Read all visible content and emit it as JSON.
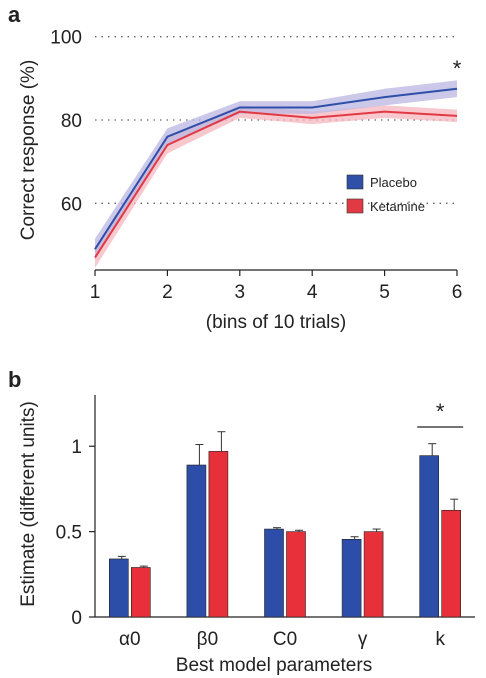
{
  "chart_data": [
    {
      "panel_label": "a",
      "type": "line",
      "x": [
        1,
        2,
        3,
        4,
        5,
        6
      ],
      "x_ticks": [
        "1",
        "2",
        "3",
        "4",
        "5",
        "6"
      ],
      "xlabel": "(bins of 10 trials)",
      "ylabel": "Correct response (%)",
      "y_ticks": [
        "60",
        "80",
        "100"
      ],
      "ylim": [
        44,
        104
      ],
      "xlim": [
        1,
        6
      ],
      "grid": "dotted horizontal at 60, 80, 100",
      "legend_position": "right-middle",
      "series": [
        {
          "name": "Placebo",
          "color": "#2f4fa8",
          "band_color": "#b9b6e3",
          "values": [
            49,
            76,
            83,
            83,
            85.5,
            87.5
          ],
          "error": [
            2.5,
            2,
            1.5,
            1.5,
            2,
            2
          ]
        },
        {
          "name": "Ketamine",
          "color": "#e23a45",
          "band_color": "#f4b6bd",
          "values": [
            47,
            74,
            82,
            80.5,
            82,
            81
          ],
          "error": [
            2.5,
            2,
            1.5,
            1.5,
            1.5,
            1.5
          ]
        }
      ],
      "annotations": [
        {
          "text": "*",
          "x": 6
        }
      ]
    },
    {
      "panel_label": "b",
      "type": "bar",
      "categories": [
        "α0",
        "β0",
        "C0",
        "γ",
        "k"
      ],
      "xlabel": "Best model parameters",
      "ylabel": "Estimate (different units)",
      "y_ticks": [
        "0",
        "0.5",
        "1"
      ],
      "ylim": [
        0,
        1.3
      ],
      "series": [
        {
          "name": "Placebo",
          "color": "#2d4ea8",
          "values": [
            0.34,
            0.89,
            0.515,
            0.455,
            0.945
          ],
          "error": [
            0.015,
            0.12,
            0.008,
            0.015,
            0.07
          ]
        },
        {
          "name": "Ketamine",
          "color": "#e8303a",
          "values": [
            0.29,
            0.97,
            0.5,
            0.5,
            0.625
          ],
          "error": [
            0.008,
            0.115,
            0.008,
            0.015,
            0.065
          ]
        }
      ],
      "annotations": [
        {
          "text": "*",
          "category": "k"
        }
      ]
    }
  ]
}
